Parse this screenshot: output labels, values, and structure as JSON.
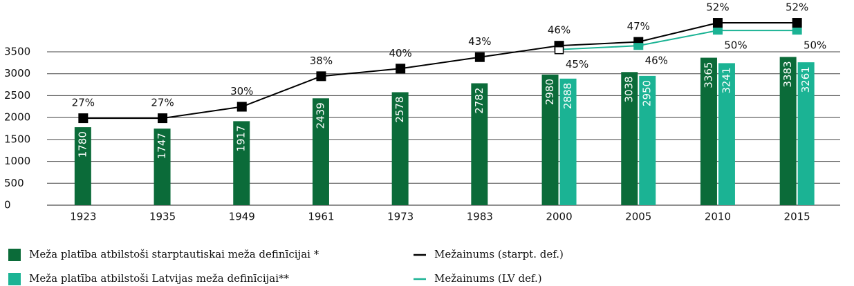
{
  "chart_data": {
    "type": "bar",
    "categories": [
      "1923",
      "1935",
      "1949",
      "1961",
      "1973",
      "1983",
      "2000",
      "2005",
      "2010",
      "2015"
    ],
    "ylim": [
      0,
      3500
    ],
    "yticks": [
      0,
      500,
      1000,
      1500,
      2000,
      2500,
      3000,
      3500
    ],
    "grid": true,
    "y2lim": [
      4.2,
      44.4
    ],
    "series": [
      {
        "name": "Meža platība atbilstoši starptautiskai meža definīcijai *",
        "type": "bar",
        "color": "#0b6b39",
        "values": [
          1780,
          1747,
          1917,
          2439,
          2578,
          2782,
          2980,
          3038,
          3365,
          3383
        ]
      },
      {
        "name": "Meža platība atbilstoši Latvijas meža definīcijai**",
        "type": "bar",
        "color": "#1bb394",
        "values": [
          null,
          null,
          null,
          null,
          null,
          null,
          2888,
          2950,
          3241,
          3261
        ]
      },
      {
        "name": "Mežainums (starpt. def.)",
        "type": "line",
        "axis": "y2",
        "color": "#000000",
        "values": [
          27,
          27,
          30,
          38,
          40,
          43,
          46,
          47,
          52,
          52
        ],
        "value_labels": [
          "27%",
          "27%",
          "30%",
          "38%",
          "40%",
          "43%",
          "46%",
          "47%",
          "52%",
          "52%"
        ]
      },
      {
        "name": "Mežainums (LV def.)",
        "type": "line",
        "axis": "y2",
        "color": "#1bb394",
        "values": [
          null,
          null,
          null,
          null,
          null,
          null,
          45,
          46,
          50,
          50
        ],
        "value_labels": [
          null,
          null,
          null,
          null,
          null,
          null,
          "45%",
          "46%",
          "50%",
          "50%"
        ]
      }
    ]
  }
}
